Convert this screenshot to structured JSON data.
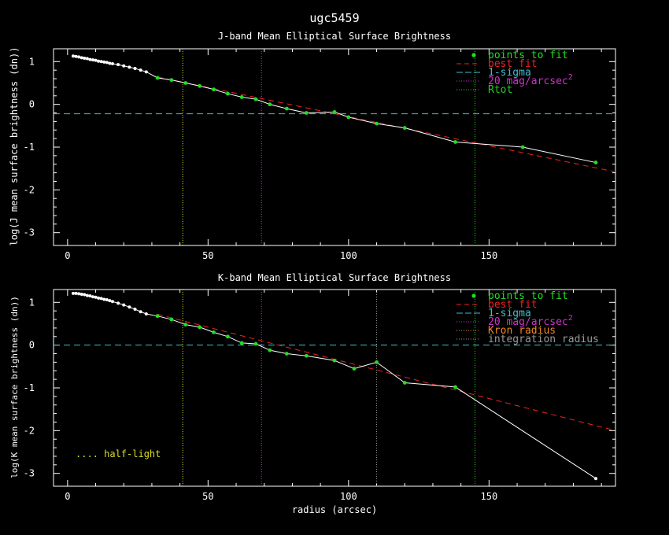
{
  "figure_title": "ugc5459",
  "xlabel": "radius (arcsec)",
  "colors": {
    "background": "#000000",
    "axes": "#ffffff",
    "points": "#22dd22",
    "best_fit": "#ee2222",
    "sigma": "#44bbcc",
    "mag20": "#cc33cc",
    "rtot": "#22cc22",
    "half_light": "#dddd22",
    "kron": "#ee8822",
    "integration": "#999999",
    "profile": "#ffffff"
  },
  "chart_data": [
    {
      "id": "j",
      "type": "line",
      "title": "J-band Mean Elliptical Surface Brightness",
      "ylabel": "log(J mean surface brightness (dn))",
      "xlim": [
        -5,
        195
      ],
      "ylim": [
        -3.3,
        1.3
      ],
      "xticks": [
        0,
        50,
        100,
        150
      ],
      "yticks": [
        -3,
        -2,
        -1,
        0,
        1
      ],
      "legend": [
        "points to fit",
        "best fit",
        "1-sigma",
        "20 mag/arcsec",
        "Rtot"
      ],
      "legend_superscript": "2",
      "profile": [
        [
          2,
          1.13
        ],
        [
          3,
          1.12
        ],
        [
          4,
          1.11
        ],
        [
          5,
          1.09
        ],
        [
          6,
          1.08
        ],
        [
          7,
          1.07
        ],
        [
          8,
          1.05
        ],
        [
          9,
          1.04
        ],
        [
          10,
          1.03
        ],
        [
          11,
          1.01
        ],
        [
          12,
          1.0
        ],
        [
          13,
          0.99
        ],
        [
          14,
          0.98
        ],
        [
          15,
          0.96
        ],
        [
          16,
          0.95
        ],
        [
          18,
          0.93
        ],
        [
          20,
          0.9
        ],
        [
          22,
          0.87
        ],
        [
          24,
          0.84
        ],
        [
          26,
          0.8
        ],
        [
          28,
          0.76
        ],
        [
          32,
          0.62
        ],
        [
          37,
          0.57
        ],
        [
          42,
          0.5
        ],
        [
          47,
          0.43
        ],
        [
          52,
          0.35
        ],
        [
          57,
          0.25
        ],
        [
          62,
          0.17
        ],
        [
          67,
          0.12
        ],
        [
          72,
          0.0
        ],
        [
          78,
          -0.1
        ],
        [
          85,
          -0.2
        ],
        [
          95,
          -0.18
        ],
        [
          100,
          -0.3
        ],
        [
          110,
          -0.45
        ],
        [
          120,
          -0.55
        ],
        [
          138,
          -0.88
        ],
        [
          162,
          -1.0
        ],
        [
          188,
          -1.36
        ]
      ],
      "fit_points": [
        [
          32,
          0.62
        ],
        [
          37,
          0.57
        ],
        [
          42,
          0.5
        ],
        [
          47,
          0.43
        ],
        [
          52,
          0.35
        ],
        [
          57,
          0.25
        ],
        [
          62,
          0.17
        ],
        [
          67,
          0.12
        ],
        [
          72,
          0.0
        ],
        [
          78,
          -0.1
        ],
        [
          85,
          -0.2
        ],
        [
          95,
          -0.18
        ],
        [
          100,
          -0.3
        ],
        [
          110,
          -0.45
        ],
        [
          120,
          -0.55
        ],
        [
          138,
          -0.88
        ],
        [
          162,
          -1.0
        ],
        [
          188,
          -1.36
        ]
      ],
      "best_fit_line": [
        [
          32,
          0.64
        ],
        [
          195,
          -1.58
        ]
      ],
      "sigma_level": -0.22,
      "half_light_radius": 41,
      "mag20_radius": 69,
      "rtot_radius": 145
    },
    {
      "id": "k",
      "type": "line",
      "title": "K-band Mean Elliptical Surface Brightness",
      "ylabel": "log(K mean surface brightness (dn))",
      "xlim": [
        -5,
        195
      ],
      "ylim": [
        -3.3,
        1.3
      ],
      "xticks": [
        0,
        50,
        100,
        150
      ],
      "yticks": [
        -3,
        -2,
        -1,
        0,
        1
      ],
      "legend": [
        "points to fit",
        "best fit",
        "1-sigma",
        "20 mag/arcsec",
        "Kron radius",
        "integration radius"
      ],
      "legend_superscript": "2",
      "half_light_label": ".... half-light",
      "profile": [
        [
          2,
          1.21
        ],
        [
          3,
          1.21
        ],
        [
          4,
          1.2
        ],
        [
          5,
          1.19
        ],
        [
          6,
          1.18
        ],
        [
          7,
          1.16
        ],
        [
          8,
          1.15
        ],
        [
          9,
          1.13
        ],
        [
          10,
          1.12
        ],
        [
          11,
          1.1
        ],
        [
          12,
          1.09
        ],
        [
          13,
          1.07
        ],
        [
          14,
          1.06
        ],
        [
          15,
          1.04
        ],
        [
          16,
          1.02
        ],
        [
          18,
          0.98
        ],
        [
          20,
          0.94
        ],
        [
          22,
          0.89
        ],
        [
          24,
          0.84
        ],
        [
          26,
          0.78
        ],
        [
          28,
          0.73
        ],
        [
          32,
          0.68
        ],
        [
          37,
          0.6
        ],
        [
          42,
          0.48
        ],
        [
          47,
          0.42
        ],
        [
          52,
          0.3
        ],
        [
          57,
          0.2
        ],
        [
          62,
          0.05
        ],
        [
          67,
          0.03
        ],
        [
          72,
          -0.12
        ],
        [
          78,
          -0.2
        ],
        [
          85,
          -0.25
        ],
        [
          95,
          -0.36
        ],
        [
          102,
          -0.55
        ],
        [
          110,
          -0.4
        ],
        [
          120,
          -0.88
        ],
        [
          138,
          -0.98
        ],
        [
          188,
          -3.12
        ]
      ],
      "fit_points": [
        [
          32,
          0.68
        ],
        [
          37,
          0.6
        ],
        [
          42,
          0.48
        ],
        [
          47,
          0.42
        ],
        [
          52,
          0.3
        ],
        [
          57,
          0.2
        ],
        [
          62,
          0.05
        ],
        [
          67,
          0.03
        ],
        [
          72,
          -0.12
        ],
        [
          78,
          -0.2
        ],
        [
          85,
          -0.25
        ],
        [
          95,
          -0.36
        ],
        [
          102,
          -0.55
        ],
        [
          110,
          -0.4
        ],
        [
          120,
          -0.88
        ],
        [
          138,
          -0.98
        ]
      ],
      "best_fit_line": [
        [
          32,
          0.72
        ],
        [
          195,
          -2.0
        ]
      ],
      "sigma_level": 0.0,
      "half_light_radius": 41,
      "mag20_radius": 69,
      "kron_radius": 110,
      "rtot_radius": 145
    }
  ]
}
